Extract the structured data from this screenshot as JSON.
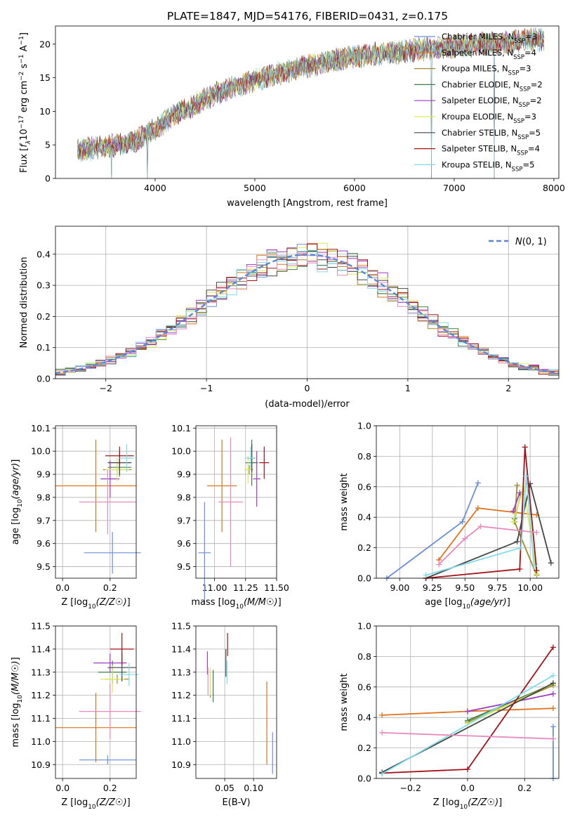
{
  "title": "PLATE=1847, MJD=54176, FIBERID=0431, z=0.175",
  "colors": [
    "#6a8fd8",
    "#e0731d",
    "#a08a2a",
    "#3d7f4b",
    "#9d3bc2",
    "#d9ec56",
    "#454545",
    "#a01218",
    "#7fdce8",
    "#e98abf"
  ],
  "legend_labels": [
    {
      "base": "Chabrier MILES, N",
      "sub": "SSP",
      "suffix": "=3"
    },
    {
      "base": "Salpeter MILES, N",
      "sub": "SSP",
      "suffix": "=4"
    },
    {
      "base": "Kroupa MILES, N",
      "sub": "SSP",
      "suffix": "=3"
    },
    {
      "base": "Chabrier ELODIE, N",
      "sub": "SSP",
      "suffix": "=2"
    },
    {
      "base": "Salpeter ELODIE, N",
      "sub": "SSP",
      "suffix": "=2"
    },
    {
      "base": "Kroupa ELODIE, N",
      "sub": "SSP",
      "suffix": "=3"
    },
    {
      "base": "Chabrier STELIB, N",
      "sub": "SSP",
      "suffix": "=5"
    },
    {
      "base": "Salpeter STELIB, N",
      "sub": "SSP",
      "suffix": "=4"
    },
    {
      "base": "Kroupa STELIB, N",
      "sub": "SSP",
      "suffix": "=5"
    }
  ],
  "chart_data": [
    {
      "type": "line",
      "name": "spectrum",
      "xlabel": "wavelength [Angstrom, rest frame]",
      "ylabel": "Flux [fλ10⁻¹⁷ erg cm⁻² s⁻¹ A⁻¹]",
      "xlim": [
        3000,
        8050
      ],
      "ylim": [
        0,
        22.7
      ],
      "xticks": [
        4000,
        5000,
        6000,
        7000,
        8000
      ],
      "yticks": [
        0,
        5,
        10,
        15,
        20
      ],
      "approx_continuum": {
        "x": [
          3220,
          3400,
          3600,
          3800,
          4000,
          4200,
          4400,
          4600,
          4800,
          5000,
          5200,
          5400,
          5600,
          5800,
          6000,
          6200,
          6400,
          6600,
          6800,
          7000,
          7200,
          7400,
          7600,
          7800
        ],
        "y": [
          4.2,
          4.6,
          4.9,
          5.6,
          7.4,
          9.5,
          11.0,
          12.6,
          13.6,
          14.6,
          15.5,
          16.2,
          17.0,
          17.6,
          18.1,
          18.5,
          18.7,
          19.1,
          19.4,
          19.7,
          19.9,
          20.1,
          20.4,
          20.7
        ]
      },
      "absorption_spikes": [
        3560,
        3920,
        6770,
        7400
      ]
    },
    {
      "type": "histogram",
      "name": "residuals",
      "xlabel": "(data-model)/error",
      "ylabel": "Normed distribution",
      "xlim": [
        -2.5,
        2.5
      ],
      "ylim": [
        0,
        0.49
      ],
      "xticks": [
        -2,
        -1,
        0,
        1,
        2
      ],
      "yticks": [
        0.0,
        0.1,
        0.2,
        0.3,
        0.4
      ],
      "legend": "N(0,1)",
      "bin_width": 0.1
    },
    {
      "type": "errorbar",
      "name": "age-vs-Z",
      "xlabel": "Z [log10(Z/Z☉)]",
      "ylabel": "age [log10(age/yr)]",
      "xlim": [
        -0.03,
        0.31
      ],
      "ylim": [
        9.45,
        10.11
      ],
      "xticks": [
        0.0,
        0.2
      ],
      "yticks": [
        9.5,
        9.6,
        9.7,
        9.8,
        9.9,
        10.0,
        10.1
      ],
      "points": [
        {
          "x": 0.21,
          "xerr": 0.12,
          "y": 9.56,
          "yerr": 0.09
        },
        {
          "x": 0.14,
          "xerr": 0.17,
          "y": 9.85,
          "yerr": 0.2
        },
        {
          "x": 0.23,
          "xerr": 0.06,
          "y": 9.92,
          "yerr": 0.02
        },
        {
          "x": 0.24,
          "xerr": 0.05,
          "y": 9.93,
          "yerr": 0.04
        },
        {
          "x": 0.2,
          "xerr": 0.04,
          "y": 9.88,
          "yerr": 0.08
        },
        {
          "x": 0.23,
          "xerr": 0.05,
          "y": 9.92,
          "yerr": 0.05
        },
        {
          "x": 0.24,
          "xerr": 0.05,
          "y": 9.95,
          "yerr": 0.05
        },
        {
          "x": 0.24,
          "xerr": 0.06,
          "y": 9.98,
          "yerr": 0.04
        },
        {
          "x": 0.27,
          "xerr": 0.03,
          "y": 9.97,
          "yerr": 0.06
        },
        {
          "x": 0.19,
          "xerr": 0.12,
          "y": 9.78,
          "yerr": 0.14
        }
      ]
    },
    {
      "type": "errorbar",
      "name": "age-vs-mass",
      "xlabel": "mass [log10(M/M☉)]",
      "xlim": [
        10.85,
        11.5
      ],
      "ylim": [
        9.45,
        10.11
      ],
      "xticks": [
        11.0,
        11.25,
        11.5
      ],
      "yticks": [
        9.5,
        9.6,
        9.7,
        9.8,
        9.9,
        10.0,
        10.1
      ],
      "points": [
        {
          "x": 10.92,
          "xerr": 0.05,
          "y": 9.56,
          "yerr": 0.22
        },
        {
          "x": 11.06,
          "xerr": 0.12,
          "y": 9.85,
          "yerr": 0.2
        },
        {
          "x": 11.28,
          "xerr": 0.03,
          "y": 9.92,
          "yerr": 0.02
        },
        {
          "x": 11.3,
          "xerr": 0.05,
          "y": 9.95,
          "yerr": 0.1
        },
        {
          "x": 11.34,
          "xerr": 0.03,
          "y": 9.88,
          "yerr": 0.12
        },
        {
          "x": 11.27,
          "xerr": 0.03,
          "y": 9.92,
          "yerr": 0.06
        },
        {
          "x": 11.3,
          "xerr": 0.03,
          "y": 9.97,
          "yerr": 0.06
        },
        {
          "x": 11.4,
          "xerr": 0.04,
          "y": 9.95,
          "yerr": 0.07
        },
        {
          "x": 11.29,
          "xerr": 0.04,
          "y": 9.97,
          "yerr": 0.05
        },
        {
          "x": 11.13,
          "xerr": 0.1,
          "y": 9.78,
          "yerr": 0.28
        }
      ]
    },
    {
      "type": "line",
      "name": "mass-weight-vs-age",
      "xlabel": "age [log10(age/yr)]",
      "ylabel": "mass weight",
      "xlim": [
        8.82,
        10.22
      ],
      "ylim": [
        0,
        1
      ],
      "xticks": [
        9.0,
        9.25,
        9.5,
        9.75,
        10.0
      ],
      "yticks": [
        0.0,
        0.2,
        0.4,
        0.6,
        0.8,
        1.0
      ],
      "series": [
        {
          "x": [
            8.9,
            9.48,
            9.6
          ],
          "y": [
            0.0,
            0.37,
            0.625
          ]
        },
        {
          "x": [
            9.3,
            9.6,
            10.05
          ],
          "y": [
            0.12,
            0.46,
            0.415
          ]
        },
        {
          "x": [
            9.9,
            9.88,
            10.05
          ],
          "y": [
            0.61,
            0.37,
            0.02
          ]
        },
        {
          "x": [
            9.88,
            9.93
          ],
          "y": [
            0.39,
            0.55
          ]
        },
        {
          "x": [
            9.87,
            9.92
          ],
          "y": [
            0.44,
            0.56
          ]
        },
        {
          "x": [
            9.87,
            9.95,
            10.05
          ],
          "y": [
            0.37,
            0.6,
            0.03
          ]
        },
        {
          "x": [
            9.2,
            9.9,
            10.0,
            10.16
          ],
          "y": [
            0.0,
            0.24,
            0.62,
            0.1
          ]
        },
        {
          "x": [
            9.2,
            9.92,
            9.96,
            10.05
          ],
          "y": [
            0.0,
            0.06,
            0.86,
            0.05
          ]
        },
        {
          "x": [
            9.2,
            9.93,
            9.97,
            10.03
          ],
          "y": [
            0.02,
            0.2,
            0.67,
            0.08
          ]
        },
        {
          "x": [
            9.3,
            9.5,
            9.62,
            10.05
          ],
          "y": [
            0.09,
            0.26,
            0.34,
            0.3
          ]
        }
      ]
    },
    {
      "type": "errorbar",
      "name": "mass-vs-Z",
      "xlabel": "Z [log10(Z/Z☉)]",
      "ylabel": "mass [log10(M/M☉)]",
      "xlim": [
        -0.03,
        0.31
      ],
      "ylim": [
        10.84,
        11.5
      ],
      "xticks": [
        0.0,
        0.2
      ],
      "yticks": [
        10.9,
        11.0,
        11.1,
        11.2,
        11.3,
        11.4,
        11.5
      ],
      "points": [
        {
          "x": 0.19,
          "xerr": 0.12,
          "y": 10.92,
          "yerr": 0.02
        },
        {
          "x": 0.14,
          "xerr": 0.17,
          "y": 11.06,
          "yerr": 0.15
        },
        {
          "x": 0.23,
          "xerr": 0.05,
          "y": 11.27,
          "yerr": 0.02
        },
        {
          "x": 0.21,
          "xerr": 0.06,
          "y": 11.3,
          "yerr": 0.05
        },
        {
          "x": 0.2,
          "xerr": 0.07,
          "y": 11.34,
          "yerr": 0.04
        },
        {
          "x": 0.21,
          "xerr": 0.05,
          "y": 11.27,
          "yerr": 0.06
        },
        {
          "x": 0.25,
          "xerr": 0.06,
          "y": 11.32,
          "yerr": 0.06
        },
        {
          "x": 0.25,
          "xerr": 0.05,
          "y": 11.4,
          "yerr": 0.07
        },
        {
          "x": 0.28,
          "xerr": 0.04,
          "y": 11.29,
          "yerr": 0.05
        },
        {
          "x": 0.2,
          "xerr": 0.13,
          "y": 11.13,
          "yerr": 0.12
        }
      ]
    },
    {
      "type": "errorbar",
      "name": "mass-vs-EBV",
      "xlabel": "E(B-V)",
      "xlim": [
        0.0,
        0.14
      ],
      "ylim": [
        10.84,
        11.5
      ],
      "xticks": [
        0.05,
        0.1
      ],
      "yticks": [
        10.9,
        11.0,
        11.1,
        11.2,
        11.3,
        11.4,
        11.5
      ],
      "points": [
        {
          "x": 0.133,
          "y": 10.95,
          "yerr": 0.09
        },
        {
          "x": 0.123,
          "y": 11.08,
          "yerr": 0.18
        },
        {
          "x": 0.025,
          "y": 11.24,
          "yerr": 0.05
        },
        {
          "x": 0.03,
          "y": 11.24,
          "yerr": 0.07
        },
        {
          "x": 0.02,
          "y": 11.34,
          "yerr": 0.05
        },
        {
          "x": 0.025,
          "y": 11.26,
          "yerr": 0.06
        },
        {
          "x": 0.052,
          "y": 11.34,
          "yerr": 0.06
        },
        {
          "x": 0.055,
          "y": 11.42,
          "yerr": 0.05
        },
        {
          "x": 0.054,
          "y": 11.3,
          "yerr": 0.05
        },
        {
          "x": 0.021,
          "y": 11.26,
          "yerr": 0.06
        }
      ]
    },
    {
      "type": "line",
      "name": "mass-weight-vs-Z",
      "xlabel": "Z [log10(Z/Z☉)]",
      "ylabel": "mass weight",
      "xlim": [
        -0.32,
        0.32
      ],
      "ylim": [
        0,
        1
      ],
      "xticks": [
        -0.2,
        0.0,
        0.2
      ],
      "yticks": [
        0.0,
        0.2,
        0.4,
        0.6,
        0.8,
        1.0
      ],
      "series": [
        {
          "x": [
            0.3,
            0.3
          ],
          "y": [
            0.0,
            0.34
          ]
        },
        {
          "x": [
            -0.3,
            0.0,
            0.3
          ],
          "y": [
            0.415,
            0.44,
            0.46
          ]
        },
        {
          "x": [
            0.0,
            0.3
          ],
          "y": [
            0.37,
            0.61
          ]
        },
        {
          "x": [
            0.0,
            0.3
          ],
          "y": [
            0.38,
            0.62
          ]
        },
        {
          "x": [
            0.0,
            0.3
          ],
          "y": [
            0.44,
            0.555
          ]
        },
        {
          "x": [
            0.0,
            0.3
          ],
          "y": [
            0.36,
            0.62
          ]
        },
        {
          "x": [
            -0.3,
            0.3
          ],
          "y": [
            0.04,
            0.625
          ]
        },
        {
          "x": [
            -0.3,
            0.0,
            0.3
          ],
          "y": [
            0.035,
            0.06,
            0.86
          ]
        },
        {
          "x": [
            -0.3,
            0.3
          ],
          "y": [
            0.03,
            0.675
          ]
        },
        {
          "x": [
            -0.3,
            0.3
          ],
          "y": [
            0.3,
            0.26
          ]
        }
      ]
    }
  ]
}
